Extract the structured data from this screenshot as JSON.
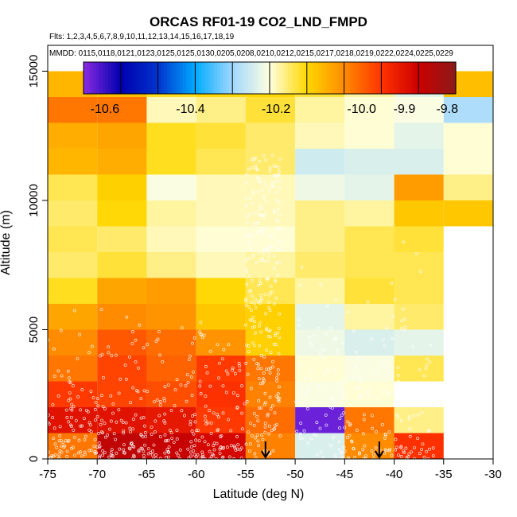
{
  "chart_data": {
    "type": "heatmap",
    "title": "ORCAS RF01-19 CO2_LND_FMPD",
    "flights_label": "Flts: 1,2,3,4,5,6,7,8,9,10,11,12,13,14,15,16,17,18,19",
    "mmdd_label": "MMDD: 0115,0118,0121,0123,0125,0125,0130,0205,0208,0210,0212,0215,0217,0218,0219,0222,0224,0225,0229",
    "xlabel": "Latitude (deg N)",
    "ylabel": "Altitude (m)",
    "xlim": [
      -75,
      -30
    ],
    "ylim": [
      0,
      16000
    ],
    "x_ticks": [
      "-75",
      "-70",
      "-65",
      "-60",
      "-55",
      "-50",
      "-45",
      "-40",
      "-35",
      "-30"
    ],
    "y_ticks": [
      "0",
      "5000",
      "10000",
      "15000"
    ],
    "colorbar": {
      "range": [
        -10.65,
        -9.78
      ],
      "ticks": [
        "-10.6",
        "-10.4",
        "-10.2",
        "-10.0",
        "-9.9",
        "-9.8"
      ],
      "tick_values": [
        -10.6,
        -10.4,
        -10.2,
        -10.0,
        -9.9,
        -9.8
      ],
      "colors": [
        "#8a2be2",
        "#0000b0",
        "#0033cc",
        "#00aaff",
        "#a0d8ff",
        "#ffffe0",
        "#ffd700",
        "#ff8c00",
        "#ff3300",
        "#cc0000",
        "#8b1a1a"
      ]
    },
    "lat_bins": [
      -75,
      -70,
      -65,
      -60,
      -55,
      -50,
      -45,
      -40,
      -35,
      -30
    ],
    "alt_bin_size": 1000,
    "cells": [
      [
        -10.02,
        -9.85,
        -9.86,
        -9.88,
        -10.03,
        -10.25,
        -10.04,
        -9.95
      ],
      [
        -9.9,
        -9.9,
        -9.91,
        -9.96,
        -10.01,
        -10.63,
        -10.02,
        -10.18
      ],
      [
        -9.96,
        -9.97,
        -9.98,
        -9.95,
        -10.03,
        -10.22,
        -10.21
      ],
      [
        -10.02,
        -9.97,
        -10.0,
        -9.96,
        -10.02,
        -10.21,
        -10.22,
        -10.16
      ],
      [
        -10.04,
        -9.99,
        -10.01,
        -10.05,
        -10.12,
        -10.23,
        -10.25,
        -10.24
      ],
      [
        -10.07,
        -10.04,
        -10.05,
        -10.11,
        -10.12,
        -10.24,
        -10.19,
        -10.17
      ],
      [
        -10.14,
        -10.07,
        -10.06,
        -10.13,
        -10.16,
        -10.19,
        -10.15,
        -10.16
      ],
      [
        -10.17,
        -10.15,
        -10.18,
        -10.2,
        -10.19,
        -10.17,
        -10.16,
        -10.16
      ],
      [
        -10.16,
        -10.17,
        -10.2,
        -10.21,
        -10.21,
        -10.18,
        -10.16,
        -10.15
      ],
      [
        -10.17,
        -10.13,
        -10.19,
        -10.2,
        -10.2,
        -10.18,
        -10.19,
        -10.11,
        -10.11
      ],
      [
        -10.16,
        -10.12,
        -10.22,
        -10.2,
        -10.2,
        -10.23,
        -10.24,
        -10.06,
        -10.18
      ],
      [
        -10.09,
        -10.08,
        -10.14,
        -10.16,
        -10.17,
        -10.26,
        -10.25,
        -10.25,
        -10.21
      ],
      [
        -10.08,
        -10.07,
        -10.14,
        -10.15,
        -10.17,
        -10.2,
        -10.21,
        -10.24,
        -10.21
      ],
      [
        -10.02,
        -10.02,
        -10.2,
        -10.18,
        -10.15,
        -10.19,
        -10.21,
        -10.22,
        -10.29
      ],
      [
        -10.09,
        -10.1,
        -10.14,
        -10.13,
        -10.13,
        -10.15,
        -10.19,
        -10.24,
        -10.1
      ]
    ],
    "markers": [
      {
        "label": "arrow",
        "lat": -53.0
      },
      {
        "label": "arrow",
        "lat": -41.5
      }
    ]
  }
}
